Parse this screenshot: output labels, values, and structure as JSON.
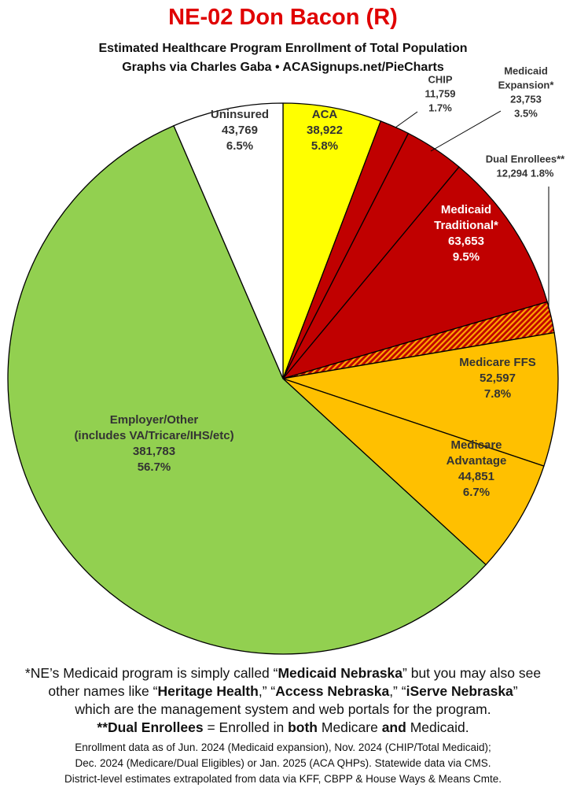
{
  "title": "NE-02 Don Bacon (R)",
  "subtitle_line1": "Estimated Healthcare Program Enrollment of Total Population",
  "subtitle_line2": "Graphs via Charles Gaba  •  ACASignups.net/PieCharts",
  "chart_data": {
    "type": "pie",
    "start_angle_deg": 0,
    "direction": "clockwise",
    "slices": [
      {
        "label": [
          "ACA"
        ],
        "value": 38922,
        "value_text": "38,922",
        "percent": "5.8%",
        "color": "#ffff00",
        "label_color": "#333333",
        "label_placement": "inside"
      },
      {
        "label": [
          "CHIP"
        ],
        "value": 11759,
        "value_text": "11,759",
        "percent": "1.7%",
        "color": "#c00000",
        "label_color": "#333333",
        "label_placement": "outside"
      },
      {
        "label": [
          "Medicaid",
          "Expansion*"
        ],
        "value": 23753,
        "value_text": "23,753",
        "percent": "3.5%",
        "color": "#c00000",
        "label_color": "#333333",
        "label_placement": "outside"
      },
      {
        "label": [
          "Medicaid",
          "Traditional*"
        ],
        "value": 63653,
        "value_text": "63,653",
        "percent": "9.5%",
        "color": "#c00000",
        "label_color": "#ffffff",
        "label_placement": "inside"
      },
      {
        "label": [
          "Dual Enrollees**"
        ],
        "value": 12294,
        "value_text": "12,294",
        "percent": "1.8%",
        "color": "#c00000",
        "pattern": "hatch",
        "pattern_color": "#ffa500",
        "label_color": "#333333",
        "label_placement": "outside"
      },
      {
        "label": [
          "Medicare FFS"
        ],
        "value": 52597,
        "value_text": "52,597",
        "percent": "7.8%",
        "color": "#ffc000",
        "label_color": "#333333",
        "label_placement": "inside"
      },
      {
        "label": [
          "Medicare",
          "Advantage"
        ],
        "value": 44851,
        "value_text": "44,851",
        "percent": "6.7%",
        "color": "#ffc000",
        "label_color": "#333333",
        "label_placement": "inside"
      },
      {
        "label": [
          "Employer/Other",
          "(includes VA/Tricare/IHS/etc)"
        ],
        "value": 381783,
        "value_text": "381,783",
        "percent": "56.7%",
        "color": "#92d050",
        "label_color": "#333333",
        "label_placement": "inside"
      },
      {
        "label": [
          "Uninsured"
        ],
        "value": 43769,
        "value_text": "43,769",
        "percent": "6.5%",
        "color": "#ffffff",
        "label_color": "#333333",
        "label_placement": "inside"
      }
    ]
  },
  "footnote": {
    "line1": [
      "*NE’s Medicaid program is simply called “",
      "Medicaid Nebraska",
      "” but you may also see"
    ],
    "line2": [
      "other names like “",
      "Heritage Health",
      ",” “",
      "Access Nebraska",
      ",” “",
      "iServe Nebraska",
      "”"
    ],
    "line3": "which are the management system and web portals for the program.",
    "line4": [
      "**Dual Enrollees",
      " = Enrolled in ",
      "both",
      " Medicare ",
      "and",
      " Medicaid."
    ]
  },
  "sources": [
    "Enrollment data as of Jun. 2024 (Medicaid expansion), Nov. 2024 (CHIP/Total Medicaid);",
    "Dec. 2024 (Medicare/Dual Eligibles) or Jan. 2025 (ACA QHPs). Statewide data via CMS.",
    "District-level estimates extrapolated from data via KFF, CBPP & House Ways & Means Cmte."
  ]
}
